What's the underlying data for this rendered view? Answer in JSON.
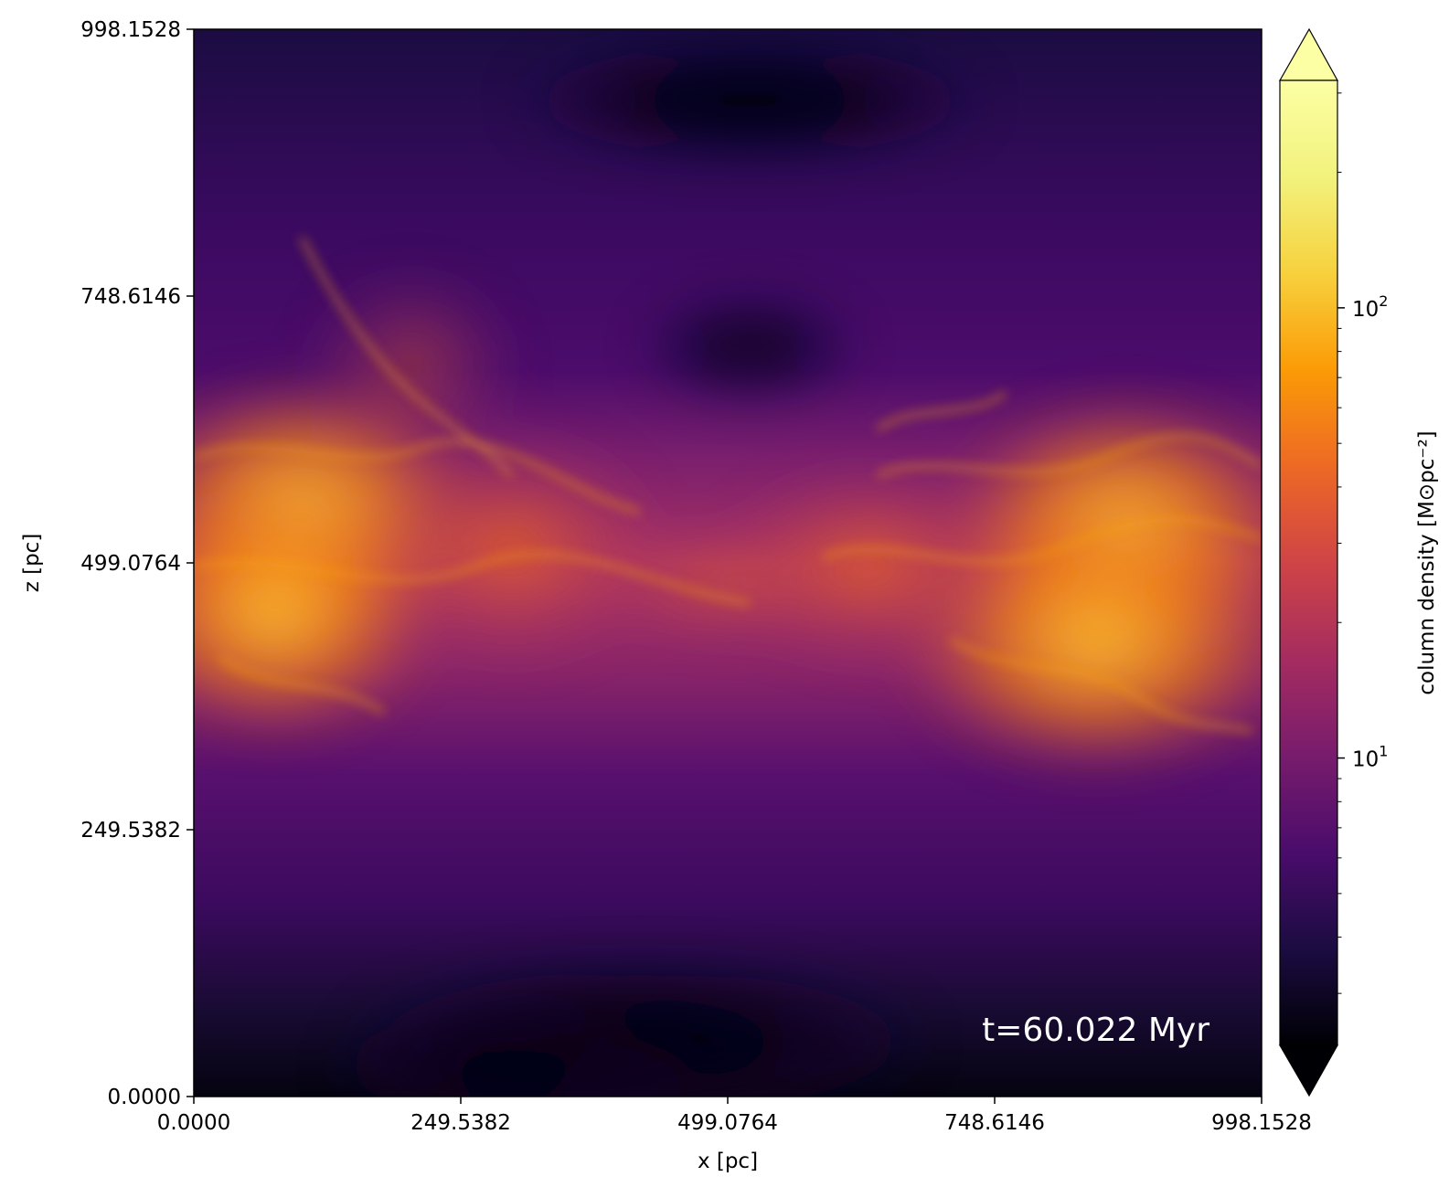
{
  "chart_data": {
    "type": "heatmap",
    "title": "",
    "xlabel": "x [pc]",
    "ylabel": "z [pc]",
    "xlim": [
      0.0,
      998.1528
    ],
    "ylim": [
      0.0,
      998.1528
    ],
    "x_ticks": [
      "0.0000",
      "249.5382",
      "499.0764",
      "748.6146",
      "998.1528"
    ],
    "y_ticks": [
      "0.0000",
      "249.5382",
      "499.0764",
      "748.6146",
      "998.1528"
    ],
    "x_tick_values": [
      0.0,
      249.5382,
      499.0764,
      748.6146,
      998.1528
    ],
    "y_tick_values": [
      0.0,
      249.5382,
      499.0764,
      748.6146,
      998.1528
    ],
    "annotation": "t=60.022 Myr",
    "colormap": "inferno",
    "colorbar": {
      "label": "column density [M⊙pc⁻²]",
      "scale": "log",
      "range": [
        2.3,
        320
      ],
      "ticks": [
        {
          "base": "10",
          "exp": "1",
          "value": 10
        },
        {
          "base": "10",
          "exp": "2",
          "value": 100
        }
      ],
      "extend": "both"
    }
  }
}
